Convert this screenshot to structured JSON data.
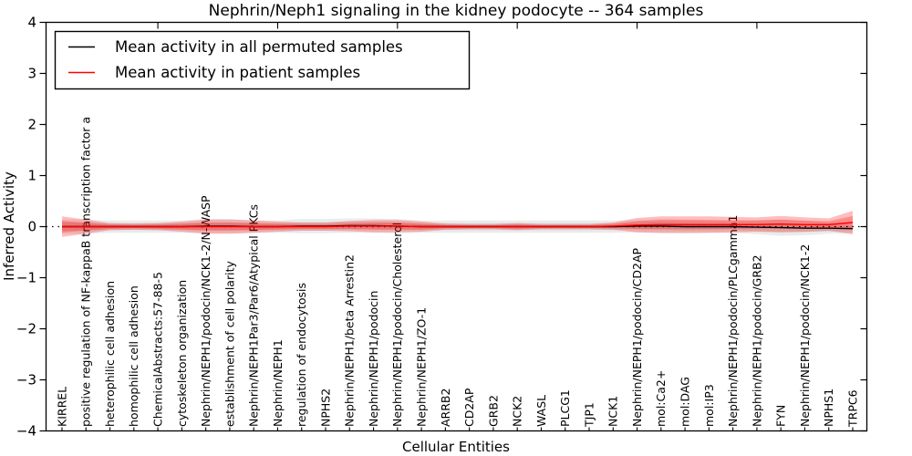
{
  "chart_data": {
    "type": "line",
    "title": "Nephrin/Neph1 signaling in the kidney podocyte -- 364 samples",
    "xlabel": "Cellular Entities",
    "ylabel": "Inferred Activity",
    "ylim": [
      -4,
      4
    ],
    "ytick_labels": [
      "4",
      "3",
      "2",
      "1",
      "0",
      "−1",
      "−2",
      "−3",
      "−4"
    ],
    "ytick_values": [
      4,
      3,
      2,
      1,
      0,
      -1,
      -2,
      -3,
      -4
    ],
    "grid": false,
    "legend_position": "upper-left",
    "zero_line": {
      "style": "dotted",
      "color": "#000000",
      "value": 0
    },
    "top_tick_category_indices": [
      4,
      9,
      14,
      19,
      24,
      29
    ],
    "legend": [
      {
        "label": "Mean activity in all permuted samples",
        "color": "#000000"
      },
      {
        "label": "Mean activity in patient samples",
        "color": "#ff0000"
      }
    ],
    "categories": [
      "KIRREL",
      "positive regulation of NF-kappaB transcription factor a",
      "heterophilic cell adhesion",
      "homophilic cell adhesion",
      "ChemicalAbstracts:57-88-5",
      "cytoskeleton organization",
      "Nephrin/NEPH1/podocin/NCK1-2/N-WASP",
      "establishment of cell polarity",
      "Nephrin/NEPH1Par3/Par6/Atypical PKCs",
      "Nephrin/NEPH1",
      "regulation of endocytosis",
      "NPHS2",
      "Nephrin/NEPH1/beta Arrestin2",
      "Nephrin/NEPH1/podocin",
      "Nephrin/NEPH1/podocin/Cholesterol",
      "Nephrin/NEPH1/ZO-1",
      "ARRB2",
      "CD2AP",
      "GRB2",
      "NCK2",
      "WASL",
      "PLCG1",
      "TJP1",
      "NCK1",
      "Nephrin/NEPH1/podocin/CD2AP",
      "mol:Ca2+",
      "mol:DAG",
      "mol:IP3",
      "Nephrin/NEPH1/podocin/PLCgamma1",
      "Nephrin/NEPH1/podocin/GRB2",
      "FYN",
      "Nephrin/NEPH1/podocin/NCK1-2",
      "NPHS1",
      "TRPC6"
    ],
    "series": [
      {
        "name": "Mean activity in all permuted samples",
        "color": "#000000",
        "band_color": "rgba(0,0,0,0.08)",
        "values": [
          0,
          0,
          0,
          0,
          0,
          0,
          0.01,
          0.01,
          0,
          0,
          0.01,
          0.01,
          0.02,
          0.02,
          0.01,
          0,
          0,
          0,
          0,
          0,
          0,
          0,
          0,
          0,
          0.01,
          0.01,
          0,
          0,
          0,
          -0.01,
          -0.02,
          -0.03,
          -0.03,
          -0.04
        ],
        "band_halfwidth": [
          0.14,
          0.14,
          0.12,
          0.12,
          0.12,
          0.12,
          0.14,
          0.14,
          0.12,
          0.12,
          0.14,
          0.14,
          0.14,
          0.14,
          0.14,
          0.12,
          0.12,
          0.12,
          0.12,
          0.12,
          0.12,
          0.12,
          0.12,
          0.12,
          0.12,
          0.14,
          0.14,
          0.12,
          0.12,
          0.14,
          0.16,
          0.14,
          0.11,
          0.09
        ]
      },
      {
        "name": "Mean activity in patient samples",
        "color": "#ff0000",
        "band_color": "rgba(255,0,0,0.26)",
        "values": [
          0,
          0,
          0,
          0,
          0,
          0,
          0,
          0,
          0,
          0,
          0,
          0,
          0.01,
          0.01,
          0.01,
          0,
          0,
          0,
          0,
          0,
          0,
          0,
          0,
          0.01,
          0.03,
          0.04,
          0.04,
          0.04,
          0.04,
          0.04,
          0.05,
          0.04,
          0.04,
          0.08
        ],
        "band_halfwidth": [
          0.2,
          0.14,
          0.07,
          0.06,
          0.07,
          0.1,
          0.14,
          0.14,
          0.12,
          0.1,
          0.08,
          0.08,
          0.1,
          0.12,
          0.12,
          0.1,
          0.06,
          0.05,
          0.05,
          0.07,
          0.05,
          0.05,
          0.05,
          0.07,
          0.14,
          0.16,
          0.16,
          0.16,
          0.15,
          0.14,
          0.16,
          0.14,
          0.12,
          0.23
        ]
      }
    ]
  }
}
